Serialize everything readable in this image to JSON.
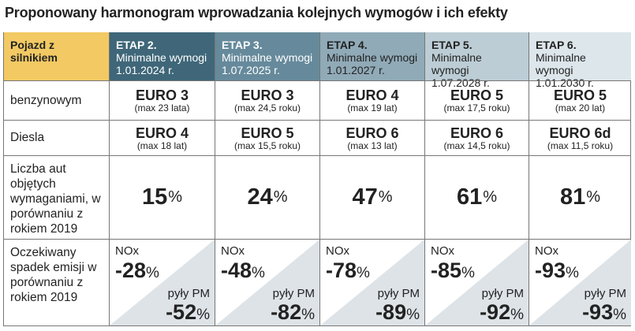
{
  "title": "Proponowany harmonogram wprowadzania kolejnych wymogów i ich efekty",
  "colors": {
    "header_first": "#f2c963",
    "etap": [
      "#3f6779",
      "#668a9b",
      "#90aab7",
      "#bccdd5",
      "#dce6eb"
    ],
    "triangle": "#dde3e7"
  },
  "header": {
    "first_label": "Pojazd z silnikiem",
    "stages": [
      {
        "name": "ETAP 2.",
        "desc": "Minimalne wymogi",
        "date": "1.01.2024 r."
      },
      {
        "name": "ETAP 3.",
        "desc": "Minimalne wymogi",
        "date": "1.07.2025 r."
      },
      {
        "name": "ETAP 4.",
        "desc": "Minimalne wymogi",
        "date": "1.01.2027 r."
      },
      {
        "name": "ETAP 5.",
        "desc": "Minimalne wymogi",
        "date": "1.07.2028 r."
      },
      {
        "name": "ETAP 6.",
        "desc": "Minimalne wymogi",
        "date": "1.01.2030 r."
      }
    ]
  },
  "rows": {
    "petrol": {
      "label": "benzynowym",
      "values": [
        {
          "norm": "EURO 3",
          "age": "(max 23 lata)"
        },
        {
          "norm": "EURO 3",
          "age": "(max 24,5 roku)"
        },
        {
          "norm": "EURO 4",
          "age": "(max 19 lat)"
        },
        {
          "norm": "EURO 5",
          "age": "(max 17,5 roku)"
        },
        {
          "norm": "EURO 5",
          "age": "(max 20 lat)"
        }
      ]
    },
    "diesel": {
      "label": "Diesla",
      "values": [
        {
          "norm": "EURO 4",
          "age": "(max 18 lat)"
        },
        {
          "norm": "EURO 5",
          "age": "(max 15,5 roku)"
        },
        {
          "norm": "EURO 6",
          "age": "(max 13 lat)"
        },
        {
          "norm": "EURO 6",
          "age": "(max 14,5 roku)"
        },
        {
          "norm": "EURO 6d",
          "age": "(max 11,5 roku)"
        }
      ]
    },
    "share": {
      "label": "Liczba aut objętych wymaganiami, w porównaniu z rokiem 2019",
      "percent_sign": "%",
      "values": [
        "15",
        "24",
        "47",
        "61",
        "81"
      ]
    },
    "emission": {
      "label": "Oczekiwany spadek emisji w porównaniu z rokiem 2019",
      "nox_label": "NOx",
      "pm_label": "pyły PM",
      "percent_sign": "%",
      "values": [
        {
          "nox": "-28",
          "pm": "-52"
        },
        {
          "nox": "-48",
          "pm": "-82"
        },
        {
          "nox": "-78",
          "pm": "-89"
        },
        {
          "nox": "-85",
          "pm": "-92"
        },
        {
          "nox": "-93",
          "pm": "-93"
        }
      ]
    }
  }
}
